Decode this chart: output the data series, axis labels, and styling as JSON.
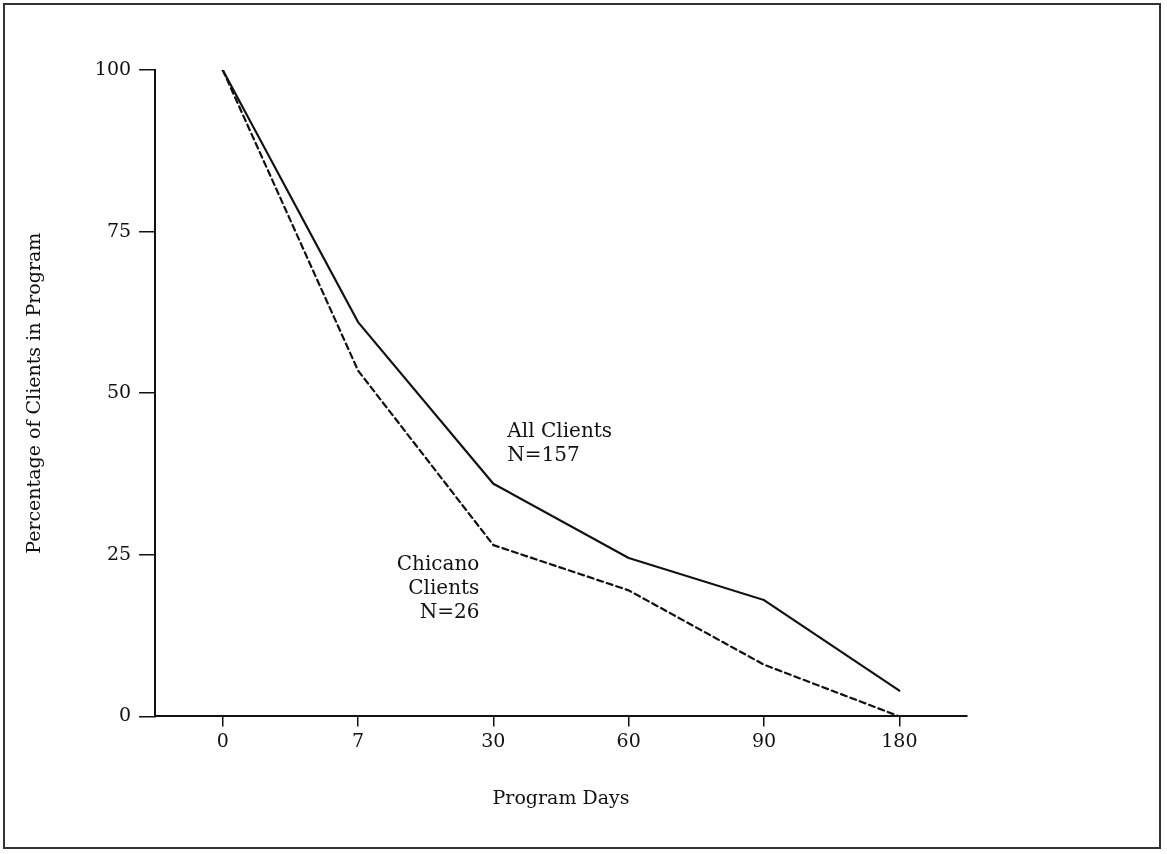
{
  "chart_data": {
    "type": "line",
    "xlabel": "Program Days",
    "ylabel": "Percentage of Clients in Program",
    "categories": [
      "0",
      "7",
      "30",
      "60",
      "90",
      "180"
    ],
    "series": [
      {
        "name": "All Clients N=157",
        "color": "#111111",
        "line_style": "solid",
        "values": [
          100,
          61,
          36,
          24.5,
          18,
          4
        ]
      },
      {
        "name": "Chicano Clients N=26",
        "color": "#111111",
        "line_style": "dashed",
        "values": [
          100,
          53.5,
          26.5,
          19.5,
          8,
          0
        ]
      }
    ],
    "ylim": [
      0,
      100
    ],
    "yticks": [
      0,
      25,
      50,
      75,
      100
    ],
    "grid": false,
    "legend": false,
    "marker": "none"
  }
}
